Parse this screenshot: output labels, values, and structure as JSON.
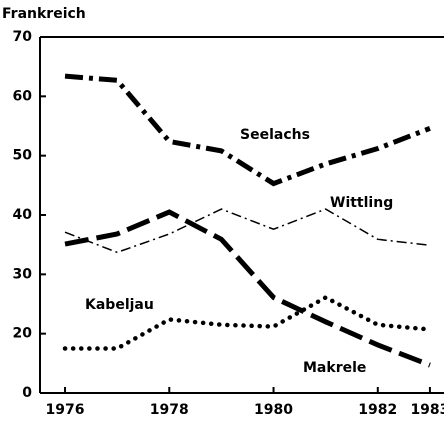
{
  "chart_data": {
    "type": "line",
    "title": "Frankreich",
    "x": [
      1976,
      1977,
      1978,
      1979,
      1980,
      1981,
      1982,
      1983
    ],
    "series": [
      {
        "name": "Seelachs",
        "color": "#000000",
        "dash": "dash-dot",
        "values": [
          63.4,
          62.7,
          52.4,
          50.8,
          45.3,
          48.6,
          51.2,
          54.6
        ]
      },
      {
        "name": "Wittling",
        "color": "#000000",
        "dash": "thin-dash-dot",
        "values": [
          37.1,
          33.7,
          36.8,
          41,
          37.6,
          41,
          35.9,
          34.9
        ]
      },
      {
        "name": "Makrele",
        "color": "#000000",
        "dash": "long-dash",
        "values": [
          35.1,
          36.8,
          40.5,
          35.9,
          26.1,
          22,
          18.1,
          14.7
        ]
      },
      {
        "name": "Kabeljau",
        "color": "#000000",
        "dash": "dotted",
        "values": [
          17.5,
          17.5,
          22.4,
          21.5,
          21.2,
          26.1,
          21.5,
          20.7
        ]
      }
    ],
    "xlim": [
      1975.52,
      1983.27
    ],
    "xticks": [
      1976,
      1978,
      1980,
      1982,
      1983
    ],
    "ylim": [
      10,
      70
    ],
    "yticks": [
      {
        "value": 10,
        "label": "0"
      },
      20,
      30,
      40,
      50,
      60,
      70
    ],
    "grid": false
  }
}
